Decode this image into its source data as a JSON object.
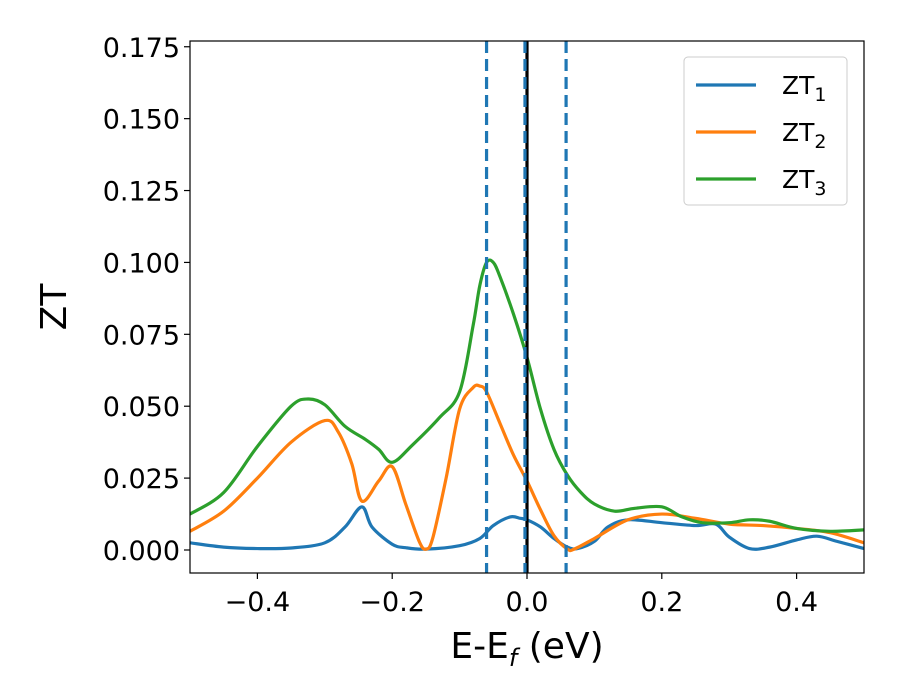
{
  "chart_data": {
    "type": "line",
    "xlabel": "E-E",
    "xlabel_sub": "f",
    "xlabel_unit": " (eV)",
    "ylabel": "ZT",
    "xlim": [
      -0.5,
      0.5
    ],
    "ylim": [
      -0.008,
      0.177
    ],
    "x_ticks": [
      -0.4,
      -0.2,
      0.0,
      0.2,
      0.4
    ],
    "x_tick_labels": [
      "−0.4",
      "−0.2",
      "0.0",
      "0.2",
      "0.4"
    ],
    "y_ticks": [
      0.0,
      0.025,
      0.05,
      0.075,
      0.1,
      0.125,
      0.15,
      0.175
    ],
    "y_tick_labels": [
      "0.000",
      "0.025",
      "0.050",
      "0.075",
      "0.100",
      "0.125",
      "0.150",
      "0.175"
    ],
    "grid": false,
    "legend_position": "top-right",
    "vertical_lines": [
      {
        "x": -0.06,
        "style": "dashed",
        "color": "#1f77b4"
      },
      {
        "x": 0.0,
        "style": "solid",
        "color": "#000000"
      },
      {
        "x": -0.003,
        "style": "dashed",
        "color": "#1f77b4"
      },
      {
        "x": 0.058,
        "style": "dashed",
        "color": "#1f77b4"
      }
    ],
    "series": [
      {
        "name": "ZT",
        "name_sub": "1",
        "color": "#1f77b4",
        "x": [
          -0.5,
          -0.45,
          -0.4,
          -0.35,
          -0.3,
          -0.27,
          -0.245,
          -0.23,
          -0.2,
          -0.18,
          -0.15,
          -0.1,
          -0.07,
          -0.05,
          -0.025,
          -0.01,
          0.0,
          0.02,
          0.04,
          0.06,
          0.075,
          0.1,
          0.12,
          0.15,
          0.2,
          0.25,
          0.28,
          0.3,
          0.33,
          0.36,
          0.4,
          0.43,
          0.46,
          0.5
        ],
        "y": [
          0.0025,
          0.001,
          0.0005,
          0.0007,
          0.0025,
          0.008,
          0.015,
          0.008,
          0.002,
          0.0008,
          0.0003,
          0.0015,
          0.004,
          0.0085,
          0.0115,
          0.011,
          0.0105,
          0.008,
          0.004,
          0.001,
          0.0005,
          0.003,
          0.008,
          0.0105,
          0.0095,
          0.0085,
          0.009,
          0.0045,
          0.0005,
          0.001,
          0.0035,
          0.0048,
          0.003,
          0.0005
        ]
      },
      {
        "name": "ZT",
        "name_sub": "2",
        "color": "#ff7f0e",
        "x": [
          -0.5,
          -0.45,
          -0.4,
          -0.35,
          -0.3,
          -0.28,
          -0.26,
          -0.245,
          -0.22,
          -0.2,
          -0.18,
          -0.16,
          -0.15,
          -0.14,
          -0.12,
          -0.1,
          -0.08,
          -0.07,
          -0.06,
          -0.04,
          -0.02,
          0.0,
          0.02,
          0.04,
          0.06,
          0.07,
          0.1,
          0.15,
          0.2,
          0.25,
          0.3,
          0.35,
          0.4,
          0.45,
          0.5
        ],
        "y": [
          0.0065,
          0.0135,
          0.025,
          0.0375,
          0.045,
          0.041,
          0.03,
          0.017,
          0.024,
          0.029,
          0.016,
          0.003,
          0.0003,
          0.004,
          0.025,
          0.049,
          0.0565,
          0.057,
          0.055,
          0.044,
          0.033,
          0.024,
          0.014,
          0.005,
          0.0003,
          0.0003,
          0.004,
          0.0105,
          0.0125,
          0.011,
          0.009,
          0.0085,
          0.0075,
          0.006,
          0.0025
        ]
      },
      {
        "name": "ZT",
        "name_sub": "3",
        "color": "#2ca02c",
        "x": [
          -0.5,
          -0.45,
          -0.4,
          -0.35,
          -0.325,
          -0.3,
          -0.27,
          -0.24,
          -0.22,
          -0.2,
          -0.17,
          -0.13,
          -0.1,
          -0.08,
          -0.07,
          -0.06,
          -0.05,
          -0.04,
          -0.02,
          0.0,
          0.02,
          0.04,
          0.06,
          0.08,
          0.1,
          0.13,
          0.16,
          0.2,
          0.23,
          0.26,
          0.3,
          0.33,
          0.36,
          0.4,
          0.45,
          0.5
        ],
        "y": [
          0.0125,
          0.02,
          0.036,
          0.05,
          0.0525,
          0.0505,
          0.043,
          0.0385,
          0.035,
          0.0305,
          0.0365,
          0.046,
          0.055,
          0.078,
          0.092,
          0.1,
          0.1,
          0.095,
          0.082,
          0.067,
          0.049,
          0.035,
          0.026,
          0.02,
          0.016,
          0.0135,
          0.0145,
          0.015,
          0.0115,
          0.0095,
          0.0095,
          0.0105,
          0.01,
          0.0075,
          0.0065,
          0.007
        ]
      }
    ]
  }
}
